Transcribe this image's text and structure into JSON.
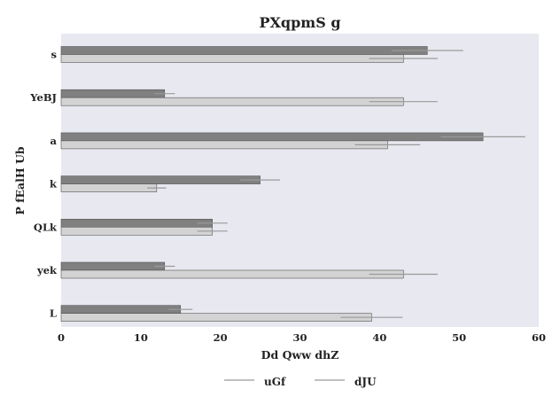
{
  "chart_data": {
    "type": "bar",
    "orientation": "horizontal",
    "title": "PXqpmS  g",
    "xlabel": "Dd Qww dhZ",
    "ylabel": "P fEalH Ub",
    "categories": [
      "s",
      "YeBJ",
      "a",
      "k",
      "QLk",
      "yek",
      "L"
    ],
    "xlim": [
      0,
      60
    ],
    "xticks": [
      0,
      10,
      20,
      30,
      40,
      50,
      60
    ],
    "grid": false,
    "legend_position": "bottom-center",
    "series": [
      {
        "name": "uGf",
        "color": "#808080",
        "values": [
          46,
          13,
          53,
          25,
          19,
          13,
          15
        ],
        "errors": [
          4.5,
          1.3,
          5.3,
          2.5,
          1.9,
          1.3,
          1.5
        ]
      },
      {
        "name": "dJU",
        "color": "#d3d3d3",
        "values": [
          43,
          43,
          41,
          12,
          19,
          43,
          39
        ],
        "errors": [
          4.3,
          4.3,
          4.1,
          1.2,
          1.9,
          4.3,
          3.9
        ]
      }
    ],
    "colors": {
      "plot_background": "#e8e8f0",
      "error_bar": "#9a9a9a",
      "bar_edge": "#555555"
    }
  }
}
